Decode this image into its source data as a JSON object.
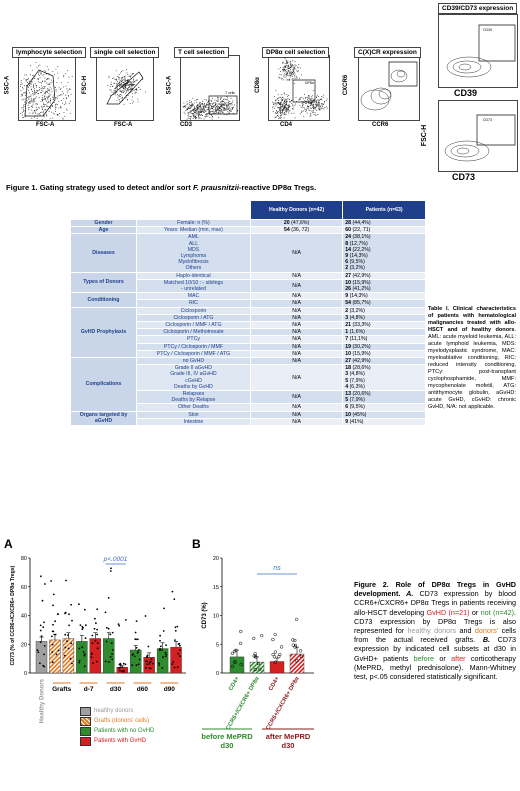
{
  "figure1": {
    "panels": [
      {
        "title": "lymphocyte selection",
        "xlabel": "FSC-A",
        "ylabel": "SSC-A",
        "gate": ""
      },
      {
        "title": "single cell selection",
        "xlabel": "FSC-A",
        "ylabel": "FSC-H",
        "gate": "single cells"
      },
      {
        "title": "T cell selection",
        "xlabel": "CD3",
        "ylabel": "SSC-A",
        "gate": "T cells"
      },
      {
        "title": "DP8α cell selection",
        "xlabel": "CD4",
        "ylabel": "CD8α",
        "gate": "DP8α"
      },
      {
        "title": "C(X)CR expression",
        "xlabel": "CCR6",
        "ylabel": "CXCR6",
        "gate": ""
      },
      {
        "title": "CD39/CD73 expression",
        "xlabel": "CD39",
        "ylabel": "FSC-H",
        "gate": "CD39"
      },
      {
        "title": "",
        "xlabel": "CD73",
        "ylabel": "FSC-H",
        "gate": "CD73"
      }
    ],
    "caption_bold": "Figure 1.",
    "caption_a": " Gating strategy used to detect and/or sort ",
    "caption_i": "F. prausnitzii",
    "caption_b": "-reactive DP8α Tregs."
  },
  "table": {
    "header": [
      "",
      "",
      "Healthy Donors (n=42)",
      "Patients (n=63)"
    ],
    "rows": [
      {
        "cat": "Gender",
        "sub": [
          "Female: n (%)"
        ],
        "hd": [
          "20 (47,6%)"
        ],
        "pt": [
          "28 (44,4%)"
        ]
      },
      {
        "cat": "Age",
        "sub": [
          "Years:  Median (min, max)"
        ],
        "hd": [
          "54 (36, 72)"
        ],
        "pt": [
          "60 (22, 71)"
        ]
      },
      {
        "cat": "Diseases",
        "sub": [
          "AML",
          "ALL",
          "MDS",
          "Lymphoma",
          "Myelofibrosis",
          "Others"
        ],
        "hd": [
          "N/A"
        ],
        "pt": [
          "24 (38,1%)",
          "8 (12,7%)",
          "14 (22,2%)",
          "9 (14,3%)",
          "6 (9,5%)",
          "2 (3,2%)"
        ]
      },
      {
        "cat": "Types of Donors",
        "sub": [
          "Haplo-identical"
        ],
        "hd": [
          "N/A"
        ],
        "pt": [
          "27 (42,9%)"
        ]
      },
      {
        "cat": "",
        "sub": [
          "Matched 10/10 :  - siblings",
          "- unrelated"
        ],
        "hd": [
          "N/A"
        ],
        "pt": [
          "10 (15,9%)",
          "26 (41,2%)"
        ]
      },
      {
        "cat": "Conditioning",
        "sub": [
          "MAC"
        ],
        "hd": [
          "N/A"
        ],
        "pt": [
          "9 (14,3%)"
        ]
      },
      {
        "cat": "",
        "sub": [
          "RIC"
        ],
        "hd": [
          "N/A"
        ],
        "pt": [
          "54 (85,7%)"
        ]
      },
      {
        "cat": "GvHD Prophylaxis",
        "sub": [
          "Ciclosporin"
        ],
        "hd": [
          "N/A"
        ],
        "pt": [
          "2 (3,2%)"
        ]
      },
      {
        "cat": "",
        "sub": [
          "Ciclosporin / ATG"
        ],
        "hd": [
          "N/A"
        ],
        "pt": [
          "3 (4,8%)"
        ]
      },
      {
        "cat": "",
        "sub": [
          "Ciclosporin / MMF / ATG"
        ],
        "hd": [
          "N/A"
        ],
        "pt": [
          "21 (33,3%)"
        ]
      },
      {
        "cat": "",
        "sub": [
          "Ciclosporin / Methotrexate"
        ],
        "hd": [
          "N/A"
        ],
        "pt": [
          "1 (1,6%)"
        ]
      },
      {
        "cat": "",
        "sub": [
          "PTCy"
        ],
        "hd": [
          "N/A"
        ],
        "pt": [
          "7 (11,1%)"
        ]
      },
      {
        "cat": "",
        "sub": [
          "PTCy / Ciclosporin / MMF"
        ],
        "hd": [
          "N/A"
        ],
        "pt": [
          "19 (30,2%)"
        ]
      },
      {
        "cat": "",
        "sub": [
          "PTCy / Ciclosporin / MMF / ATG"
        ],
        "hd": [
          "N/A"
        ],
        "pt": [
          "10 (15,9%)"
        ]
      },
      {
        "cat": "Complications",
        "sub": [
          "no GvHD"
        ],
        "hd": [
          "N/A"
        ],
        "pt": [
          "27 (42,9%)"
        ]
      },
      {
        "cat": "",
        "sub": [
          "Grade II  aGvHD",
          "Grade III, IV  aGvHD",
          "cGvHD",
          "Deaths by GvHD"
        ],
        "hd": [
          "N/A"
        ],
        "pt": [
          "18 (28,6%)",
          "3 (4,8%)",
          "5 (7,9%)",
          "4 (6,3%)"
        ]
      },
      {
        "cat": "",
        "sub": [
          "Relapses",
          "Deaths by Relapse"
        ],
        "hd": [
          "N/A"
        ],
        "pt": [
          "13 (20,6%)",
          "5 (7,9%)"
        ]
      },
      {
        "cat": "",
        "sub": [
          "Other Deaths"
        ],
        "hd": [
          "N/A"
        ],
        "pt": [
          "6 (9,5%)"
        ]
      },
      {
        "cat": "Organs targeted by aGvHD",
        "sub": [
          "Skin"
        ],
        "hd": [
          "N/A"
        ],
        "pt": [
          "10 (45%)"
        ]
      },
      {
        "cat": "",
        "sub": [
          "Intestine"
        ],
        "hd": [
          "N/A"
        ],
        "pt": [
          "9 (41%)"
        ]
      }
    ],
    "caption_bold": "Table I. Clinical characteristics of patients with hematological malignancies treated with allo-HSCT and of healthy donors",
    "caption_rest": ". AML: acute myeloid leukemia, ALL: acute lymphoid leukemia, MDS: myelodysplastic syndrome, MAC: myeloablative conditioning, RIC: reduced intensity conditioning, PTCy: post-transplant cyclophosphamide, MMF: mycophenolate mofetil, ATG: antithymocyte globulin, aGvHD: acute GvHD, cGvHD: chronic GvHD, N/A: not applicable."
  },
  "figure2": {
    "panelA": {
      "letter": "A",
      "ylabel": "CD73 (% of CCR6+/CXCR6+ DP8α Tregs)",
      "pvalue": "p<.0001",
      "xlabels": [
        "Healthy Donors",
        "Grafts",
        "d-7",
        "d30",
        "d60",
        "d90"
      ],
      "legend": [
        "healthy donors",
        "Grafts (donors' cells)",
        "Patients with no GvHD",
        "Patients with GvHD"
      ]
    },
    "panelB": {
      "letter": "B",
      "ylabel": "CD73 (%)",
      "sig": "ns",
      "xlabels": [
        "CD4+",
        "CCR6+/CXCR6+ DP8α",
        "CD4+",
        "CCR6+/CXCR6+ DP8α"
      ],
      "group1": [
        "before MePRD",
        "d30"
      ],
      "group2": [
        "after MePRD",
        "d30"
      ]
    },
    "caption": {
      "t1": "Figure 2. Role of DP8α Tregs in GvHD development.",
      "a": " A.",
      "t2": " CD73 expression by blood CCR6+/CXCR6+ DP8α Tregs in patients receiving allo-HSCT developing ",
      "gvhd": "GvHD (n=21)",
      "t3": " or ",
      "not": "not (n=42)",
      "t4": ". CD73 expression by DP8α Tregs is also represented for ",
      "hd": "healthy donors",
      "t5": " and ",
      "dn": "donors'",
      "t6": " cells from the actual received grafts. ",
      "b": "B.",
      "t7": " CD73 expression by indicated cell subsets at d30 in GvHD+ patients ",
      "before": "before",
      "t8": " or ",
      "after": "after",
      "t9": " corticotherapy (MePRD, methyl prednisolone). Mann-Whitney test, p<.05 considered statistically significant."
    }
  },
  "chart_data": [
    {
      "type": "bar",
      "title": "",
      "ylabel": "CD73 (% of CCR6+/CXCR6+ DP8α Tregs)",
      "ylim": [
        0,
        80
      ],
      "yticks": [
        0,
        20,
        40,
        60,
        80
      ],
      "categories": [
        "Healthy Donors",
        "Grafts",
        "Grafts",
        "d-7",
        "d-7",
        "d30",
        "d30",
        "d60",
        "d60",
        "d90",
        "d90"
      ],
      "series": [
        {
          "name": "healthy donors",
          "values": [
            22,
            null,
            null,
            null,
            null,
            null,
            null,
            null,
            null,
            null,
            null
          ],
          "sem": [
            3,
            null,
            null,
            null,
            null,
            null,
            null,
            null,
            null,
            null,
            null
          ]
        },
        {
          "name": "Grafts (donors' cells)",
          "values": [
            null,
            23,
            24,
            null,
            null,
            null,
            null,
            null,
            null,
            null,
            null
          ],
          "sem": [
            null,
            4,
            4,
            null,
            null,
            null,
            null,
            null,
            null,
            null,
            null
          ]
        },
        {
          "name": "Patients with no GvHD",
          "values": [
            null,
            null,
            null,
            22,
            null,
            24,
            null,
            16,
            null,
            17,
            null
          ],
          "sem": [
            null,
            null,
            null,
            4,
            null,
            4,
            null,
            3,
            null,
            4,
            null
          ]
        },
        {
          "name": "Patients with GvHD",
          "values": [
            null,
            null,
            null,
            null,
            24,
            null,
            4,
            null,
            11,
            null,
            18
          ],
          "sem": [
            null,
            null,
            null,
            null,
            4,
            null,
            1,
            null,
            3,
            null,
            4
          ]
        }
      ]
    },
    {
      "type": "bar",
      "title": "",
      "ylabel": "CD73 (%)",
      "ylim": [
        0,
        20
      ],
      "yticks": [
        0,
        5,
        10,
        15,
        20
      ],
      "categories": [
        "CD4+",
        "CCR6+/CXCR6+ DP8α",
        "CD4+",
        "CCR6+/CXCR6+ DP8α"
      ],
      "values": [
        2.8,
        1.9,
        2.0,
        3.3
      ],
      "sem": [
        1.2,
        0.9,
        0.6,
        1.2
      ]
    }
  ]
}
